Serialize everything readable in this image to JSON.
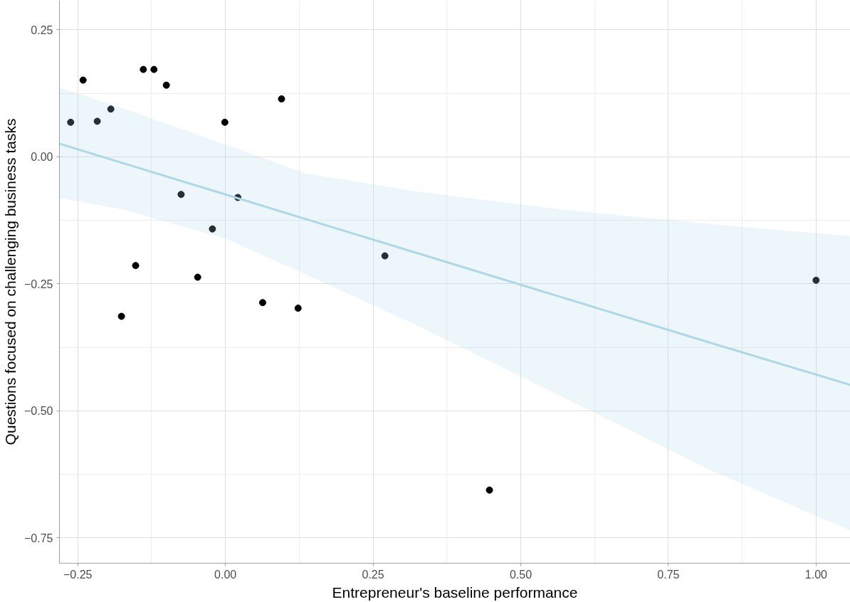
{
  "chart_data": {
    "type": "scatter",
    "xlabel": "Entrepreneur's baseline performance",
    "ylabel": "Questions focused on challenging business tasks",
    "xlim": [
      -0.281,
      1.058
    ],
    "ylim": [
      -0.8,
      0.308
    ],
    "xticks": [
      {
        "value": -0.25,
        "label": "−0.25"
      },
      "0.00",
      0.25,
      {
        "value": 0.5,
        "label": "0.50"
      },
      0.75,
      {
        "value": 1,
        "label": "1.00"
      }
    ],
    "yticks": [
      {
        "value": -0.75,
        "label": "−0.75"
      },
      {
        "value": -0.5,
        "label": "−0.50"
      },
      {
        "value": -0.25,
        "label": "−0.25"
      },
      {
        "value": 0,
        "label": "0.00"
      },
      0.25
    ],
    "grid": true,
    "series": [
      {
        "marker": "circle",
        "color": "#000000",
        "x": [
          -0.262,
          -0.241,
          -0.217,
          -0.194,
          -0.176,
          -0.152,
          -0.139,
          -0.121,
          -0.1,
          -0.075,
          -0.047,
          -0.022,
          -0.001,
          0.021,
          0.063,
          0.095,
          0.123,
          0.27,
          0.447,
          1.0
        ],
        "values": [
          0.068,
          0.151,
          0.07,
          0.094,
          -0.314,
          -0.214,
          0.172,
          0.172,
          0.141,
          -0.074,
          -0.237,
          -0.142,
          0.068,
          -0.08,
          -0.287,
          0.114,
          -0.298,
          -0.195,
          -0.656,
          -0.243
        ]
      },
      {
        "type": "line",
        "color": "#add8e6",
        "x": [
          -0.281,
          -0.172,
          0,
          0.137,
          0.323,
          0.571,
          0.818,
          1.058
        ],
        "values": [
          0.026,
          -0.013,
          -0.074,
          -0.123,
          -0.189,
          -0.277,
          -0.365,
          -0.449
        ],
        "lower": [
          -0.081,
          -0.104,
          -0.161,
          -0.232,
          -0.331,
          -0.473,
          -0.615,
          -0.736
        ],
        "upper": [
          0.136,
          0.095,
          0.024,
          -0.033,
          -0.068,
          -0.104,
          -0.132,
          -0.156
        ]
      }
    ]
  }
}
